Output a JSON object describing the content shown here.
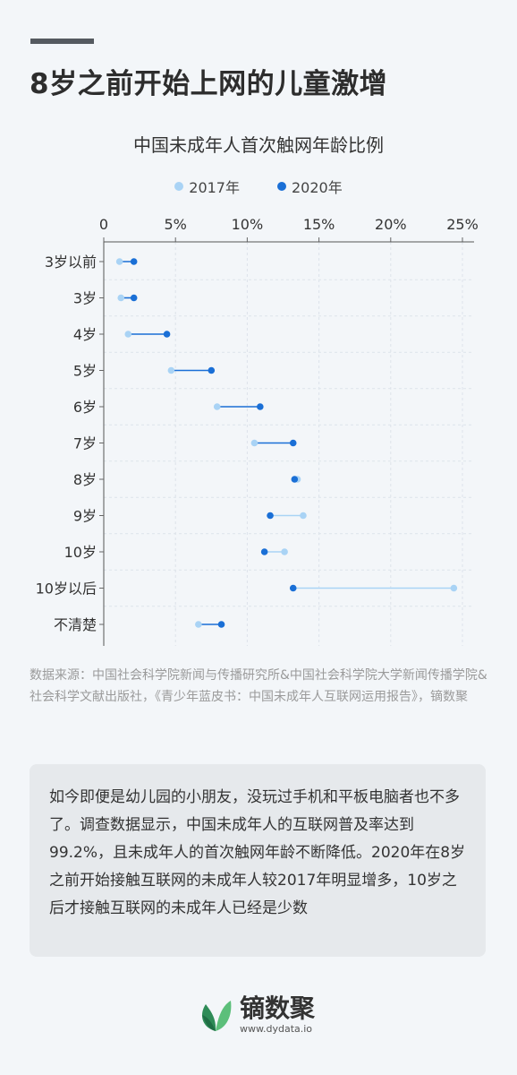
{
  "header": {
    "headline": "8岁之前开始上网的儿童激增"
  },
  "chart_data": {
    "type": "dumbbell",
    "title": "中国未成年人首次触网年龄比例",
    "categories": [
      "3岁以前",
      "3岁",
      "4岁",
      "5岁",
      "6岁",
      "7岁",
      "8岁",
      "9岁",
      "10岁",
      "10岁以后",
      "不清楚"
    ],
    "series": [
      {
        "name": "2017年",
        "color": "#a9d3f5",
        "values": [
          1.1,
          1.2,
          1.7,
          4.7,
          7.9,
          10.5,
          13.5,
          13.9,
          12.6,
          24.4,
          6.6
        ]
      },
      {
        "name": "2020年",
        "color": "#1a6fd6",
        "values": [
          2.1,
          2.1,
          4.4,
          7.5,
          10.9,
          13.2,
          13.3,
          11.6,
          11.2,
          13.2,
          8.2
        ]
      }
    ],
    "xlim": [
      0,
      25
    ],
    "xticks": [
      "0",
      "5%",
      "10%",
      "15%",
      "20%",
      "25%"
    ],
    "xtick_values": [
      0,
      5,
      10,
      15,
      20,
      25
    ],
    "legend_position": "top-center",
    "grid": true
  },
  "source": "数据来源：中国社会科学院新闻与传播研究所&中国社会科学院大学新闻传播学院&社会科学文献出版社，《青少年蓝皮书：中国未成年人互联网运用报告》，镝数聚",
  "summary": "如今即便是幼儿园的小朋友，没玩过手机和平板电脑者也不多了。调查数据显示，中国未成年人的互联网普及率达到99.2%，且未成年人的首次触网年龄不断降低。2020年在8岁之前开始接触互联网的未成年人较2017年明显增多，10岁之后才接触互联网的未成年人已经是少数",
  "brand": {
    "name": "镝数聚",
    "url": "www.dydata.io",
    "colors": {
      "leaf_dark": "#2e8b57",
      "leaf_light": "#5cbf7a"
    }
  }
}
